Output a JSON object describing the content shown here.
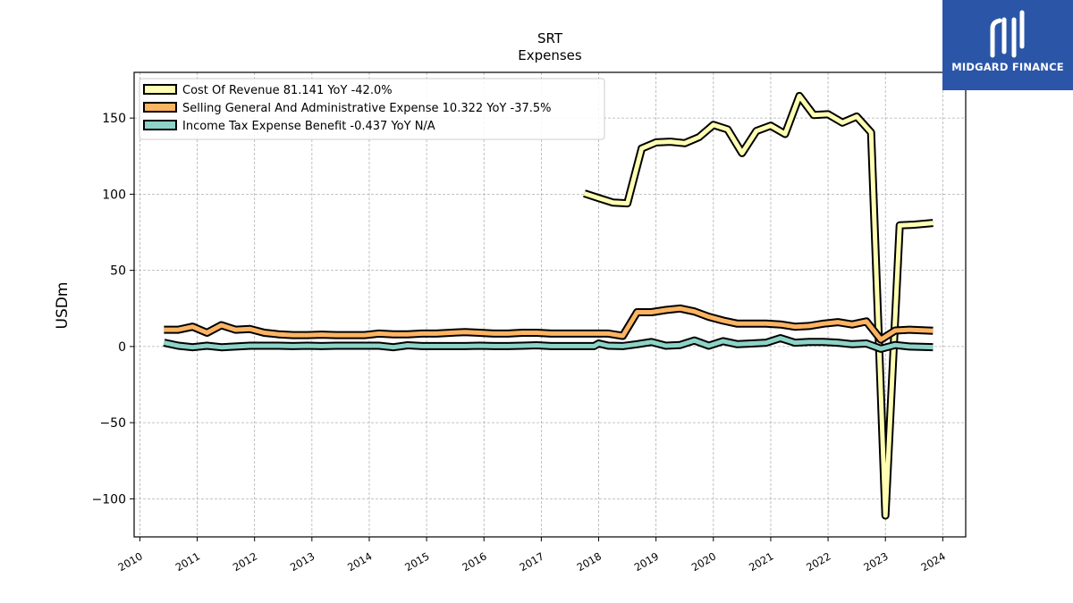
{
  "brand": {
    "name": "MIDGARD FINANCE",
    "bg_color": "#2b56a8"
  },
  "chart_data": {
    "type": "line",
    "title": "SRT",
    "subtitle": "Expenses",
    "xlabel": "",
    "ylabel": "USDm",
    "xlim": [
      2009.9,
      2024.4
    ],
    "ylim": [
      -125,
      180
    ],
    "yticks": [
      -100,
      -50,
      0,
      50,
      100,
      150
    ],
    "yticklabels": [
      "−100",
      "−50",
      "0",
      "50",
      "100",
      "150"
    ],
    "xticks": [
      2010,
      2011,
      2012,
      2013,
      2014,
      2015,
      2016,
      2017,
      2018,
      2019,
      2020,
      2021,
      2022,
      2023,
      2024
    ],
    "xticklabels": [
      "2010",
      "2011",
      "2012",
      "2013",
      "2014",
      "2015",
      "2016",
      "2017",
      "2018",
      "2019",
      "2020",
      "2021",
      "2022",
      "2023",
      "2024"
    ],
    "grid": true,
    "legend_position": "top-left",
    "series": [
      {
        "name": "Cost Of Revenue  81.141 YoY -42.0%",
        "color": "#ffffb3",
        "x": [
          2017.75,
          2018.0,
          2018.25,
          2018.5,
          2018.75,
          2019.0,
          2019.25,
          2019.5,
          2019.75,
          2020.0,
          2020.25,
          2020.5,
          2020.75,
          2021.0,
          2021.25,
          2021.5,
          2021.75,
          2022.0,
          2022.25,
          2022.5,
          2022.75,
          2023.0,
          2023.25,
          2023.5,
          2023.83
        ],
        "y": [
          100.5,
          97.5,
          94.5,
          94.0,
          130.0,
          134.0,
          134.5,
          133.5,
          137.5,
          145.5,
          142.5,
          127.0,
          141.5,
          145.0,
          139.5,
          164.5,
          152.0,
          152.5,
          147.0,
          151.0,
          140.5,
          -111.0,
          79.5,
          80.0,
          81.1
        ]
      },
      {
        "name": "Selling General And Administrative Expense  10.322 YoY -37.5%",
        "color": "#fdb462",
        "x": [
          2010.42,
          2010.67,
          2010.92,
          2011.17,
          2011.42,
          2011.67,
          2011.92,
          2012.17,
          2012.42,
          2012.67,
          2012.92,
          2013.17,
          2013.42,
          2013.67,
          2013.92,
          2014.17,
          2014.42,
          2014.67,
          2014.92,
          2015.17,
          2015.42,
          2015.67,
          2015.92,
          2016.17,
          2016.42,
          2016.67,
          2016.92,
          2017.17,
          2017.42,
          2017.67,
          2017.92,
          2018.17,
          2018.42,
          2018.67,
          2018.92,
          2019.17,
          2019.42,
          2019.67,
          2019.92,
          2020.17,
          2020.42,
          2020.67,
          2020.92,
          2021.17,
          2021.42,
          2021.67,
          2021.92,
          2022.17,
          2022.42,
          2022.67,
          2022.92,
          2023.17,
          2023.42,
          2023.83
        ],
        "y": [
          11.0,
          11.0,
          13.0,
          9.0,
          14.0,
          11.0,
          11.5,
          9.0,
          8.0,
          7.5,
          7.5,
          7.8,
          7.5,
          7.5,
          7.5,
          8.5,
          8.0,
          8.0,
          8.5,
          8.5,
          9.0,
          9.5,
          9.0,
          8.5,
          8.5,
          9.0,
          9.0,
          8.5,
          8.5,
          8.5,
          8.5,
          8.5,
          7.0,
          22.5,
          22.5,
          24.0,
          25.0,
          23.0,
          19.5,
          17.0,
          15.0,
          15.0,
          15.0,
          14.5,
          13.0,
          13.5,
          15.0,
          16.0,
          14.5,
          16.5,
          4.5,
          10.5,
          11.0,
          10.3
        ]
      },
      {
        "name": "Income Tax Expense Benefit  -0.437 YoY N/A",
        "color": "#8dd3c7",
        "x": [
          2010.42,
          2010.67,
          2010.92,
          2011.17,
          2011.42,
          2011.67,
          2011.92,
          2012.17,
          2012.42,
          2012.67,
          2012.92,
          2013.17,
          2013.42,
          2013.67,
          2013.92,
          2014.17,
          2014.42,
          2014.67,
          2014.92,
          2015.17,
          2015.42,
          2015.67,
          2015.92,
          2016.17,
          2016.42,
          2016.67,
          2016.92,
          2017.17,
          2017.42,
          2017.67,
          2017.92,
          2018.0,
          2018.17,
          2018.42,
          2018.67,
          2018.92,
          2019.17,
          2019.42,
          2019.67,
          2019.92,
          2020.17,
          2020.42,
          2020.67,
          2020.92,
          2021.17,
          2021.42,
          2021.67,
          2021.92,
          2022.17,
          2022.42,
          2022.67,
          2022.92,
          2023.17,
          2023.42,
          2023.83
        ],
        "y": [
          2.5,
          0.5,
          -0.5,
          0.5,
          -0.5,
          0.0,
          0.5,
          0.5,
          0.5,
          0.3,
          0.5,
          0.3,
          0.5,
          0.5,
          0.5,
          0.5,
          -0.5,
          0.8,
          0.3,
          0.3,
          0.3,
          0.3,
          0.5,
          0.3,
          0.3,
          0.5,
          0.8,
          0.3,
          0.3,
          0.3,
          0.3,
          2.0,
          0.5,
          0.3,
          1.5,
          3.0,
          0.5,
          1.0,
          4.0,
          0.5,
          3.5,
          1.5,
          2.0,
          2.5,
          5.5,
          2.5,
          3.0,
          3.0,
          2.5,
          1.5,
          2.0,
          -1.5,
          1.0,
          0.0,
          -0.4
        ]
      }
    ]
  }
}
